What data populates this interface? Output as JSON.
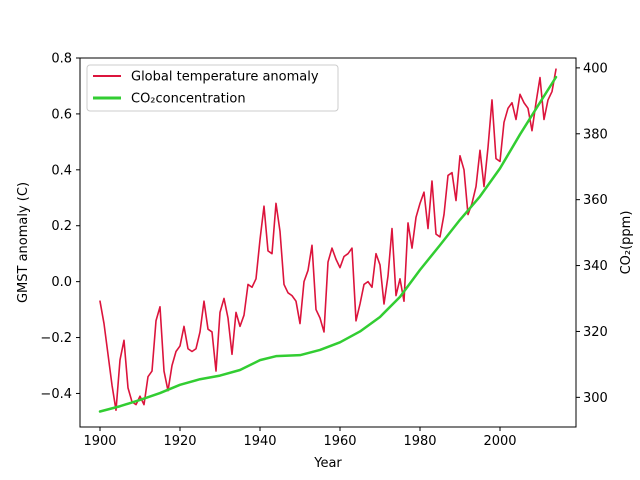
{
  "chart_data": {
    "type": "line",
    "title": "",
    "xlabel": "Year",
    "ylabel_left": "GMST anomaly (C)",
    "ylabel_right": "CO₂(ppm)",
    "xlim": [
      1895,
      2019
    ],
    "ylim_left": [
      -0.52,
      0.8
    ],
    "ylim_right": [
      291,
      403
    ],
    "xticks": [
      1900,
      1920,
      1940,
      1960,
      1980,
      2000
    ],
    "yticks_left": [
      -0.4,
      -0.2,
      0.0,
      0.2,
      0.4,
      0.6,
      0.8
    ],
    "yticks_left_labels": [
      "−0.4",
      "−0.2",
      "0.0",
      "0.2",
      "0.4",
      "0.6",
      "0.8"
    ],
    "yticks_right": [
      300,
      320,
      340,
      360,
      380,
      400
    ],
    "grid": false,
    "legend_position": "upper-left",
    "series": [
      {
        "name": "Global temperature anomaly",
        "axis": "left",
        "color": "#dc143c",
        "x": [
          1900,
          1901,
          1902,
          1903,
          1904,
          1905,
          1906,
          1907,
          1908,
          1909,
          1910,
          1911,
          1912,
          1913,
          1914,
          1915,
          1916,
          1917,
          1918,
          1919,
          1920,
          1921,
          1922,
          1923,
          1924,
          1925,
          1926,
          1927,
          1928,
          1929,
          1930,
          1931,
          1932,
          1933,
          1934,
          1935,
          1936,
          1937,
          1938,
          1939,
          1940,
          1941,
          1942,
          1943,
          1944,
          1945,
          1946,
          1947,
          1948,
          1949,
          1950,
          1951,
          1952,
          1953,
          1954,
          1955,
          1956,
          1957,
          1958,
          1959,
          1960,
          1961,
          1962,
          1963,
          1964,
          1965,
          1966,
          1967,
          1968,
          1969,
          1970,
          1971,
          1972,
          1973,
          1974,
          1975,
          1976,
          1977,
          1978,
          1979,
          1980,
          1981,
          1982,
          1983,
          1984,
          1985,
          1986,
          1987,
          1988,
          1989,
          1990,
          1991,
          1992,
          1993,
          1994,
          1995,
          1996,
          1997,
          1998,
          1999,
          2000,
          2001,
          2002,
          2003,
          2004,
          2005,
          2006,
          2007,
          2008,
          2009,
          2010,
          2011,
          2012,
          2013,
          2014
        ],
        "values": [
          -0.07,
          -0.15,
          -0.26,
          -0.37,
          -0.46,
          -0.28,
          -0.21,
          -0.38,
          -0.43,
          -0.44,
          -0.41,
          -0.44,
          -0.34,
          -0.32,
          -0.14,
          -0.09,
          -0.32,
          -0.39,
          -0.3,
          -0.25,
          -0.23,
          -0.16,
          -0.24,
          -0.25,
          -0.24,
          -0.18,
          -0.07,
          -0.17,
          -0.18,
          -0.32,
          -0.11,
          -0.06,
          -0.13,
          -0.26,
          -0.11,
          -0.16,
          -0.12,
          -0.01,
          -0.02,
          0.01,
          0.15,
          0.27,
          0.11,
          0.1,
          0.28,
          0.18,
          -0.01,
          -0.04,
          -0.05,
          -0.07,
          -0.15,
          0.0,
          0.04,
          0.13,
          -0.1,
          -0.13,
          -0.18,
          0.07,
          0.12,
          0.08,
          0.05,
          0.09,
          0.1,
          0.12,
          -0.14,
          -0.08,
          -0.01,
          0.0,
          -0.02,
          0.1,
          0.06,
          -0.08,
          0.02,
          0.19,
          -0.05,
          0.01,
          -0.07,
          0.21,
          0.12,
          0.23,
          0.28,
          0.32,
          0.19,
          0.36,
          0.17,
          0.16,
          0.24,
          0.38,
          0.39,
          0.29,
          0.45,
          0.4,
          0.24,
          0.28,
          0.34,
          0.47,
          0.34,
          0.48,
          0.65,
          0.44,
          0.43,
          0.57,
          0.62,
          0.64,
          0.58,
          0.67,
          0.64,
          0.62,
          0.54,
          0.64,
          0.73,
          0.58,
          0.65,
          0.68,
          0.76
        ]
      },
      {
        "name": "CO₂concentration",
        "axis": "right",
        "color": "#32cd32",
        "x": [
          1900,
          1905,
          1910,
          1915,
          1920,
          1925,
          1930,
          1935,
          1940,
          1944,
          1950,
          1955,
          1960,
          1965,
          1970,
          1975,
          1980,
          1985,
          1990,
          1995,
          2000,
          2005,
          2010,
          2014
        ],
        "values": [
          295.7,
          297.3,
          299.2,
          301.3,
          303.8,
          305.5,
          306.6,
          308.3,
          311.3,
          312.5,
          312.8,
          314.4,
          316.7,
          320.0,
          324.4,
          330.5,
          338.7,
          346.2,
          353.9,
          361.0,
          369.5,
          379.8,
          389.5,
          397.2
        ]
      }
    ]
  }
}
